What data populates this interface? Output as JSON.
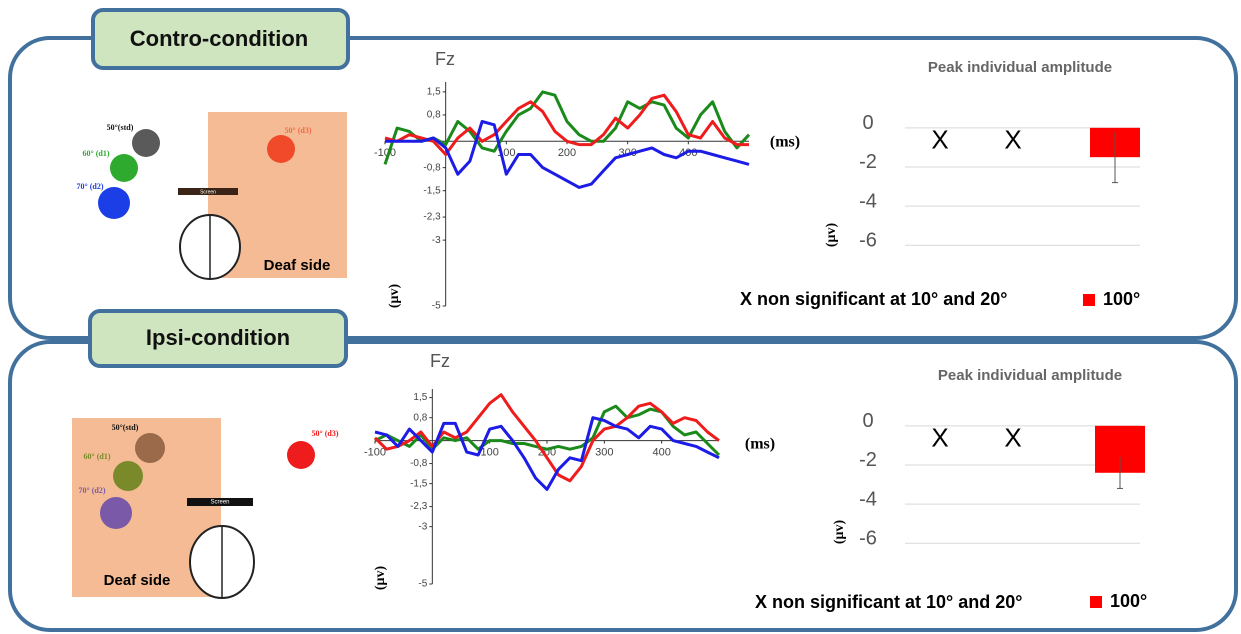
{
  "panels": [
    {
      "label": "Contro-condition",
      "diagram": {
        "std": "50°(std)",
        "d1": "60° (d1)",
        "d2": "70° (d2)",
        "d3": "50° (d3)",
        "screen": "Screen",
        "side": "Deaf side"
      }
    },
    {
      "label": "Ipsi-condition",
      "diagram": {
        "std": "50°(std)",
        "d1": "60° (d1)",
        "d2": "70° (d2)",
        "d3": "50° (d3)",
        "screen": "Screen",
        "side": "Deaf side"
      }
    }
  ],
  "chart_data": [
    {
      "type": "line",
      "title": "Fz",
      "x_label": "(ms)",
      "y_label": "(μv)",
      "x": [
        -100,
        -80,
        -60,
        -40,
        -20,
        0,
        20,
        40,
        60,
        80,
        100,
        120,
        140,
        160,
        180,
        200,
        220,
        240,
        260,
        280,
        300,
        320,
        340,
        360,
        380,
        400,
        420,
        440,
        460,
        480,
        500
      ],
      "xlim": [
        -100,
        500
      ],
      "xticks": [
        -100,
        100,
        200,
        300,
        400
      ],
      "ylim": [
        -5,
        1.8
      ],
      "yticks": [
        {
          "value": 1.5,
          "label": "1,5"
        },
        {
          "value": 0.8,
          "label": "0,8"
        },
        {
          "value": -0.8,
          "label": "-0,8"
        },
        {
          "value": -1.5,
          "label": "-1,5"
        },
        {
          "value": -2.3,
          "label": "-2,3"
        },
        {
          "value": -3,
          "label": "-3"
        },
        {
          "value": -5,
          "label": "-5"
        }
      ],
      "grid": false,
      "series": [
        {
          "color": "#1a8a1a",
          "values": [
            -0.7,
            0.4,
            0.3,
            0,
            0.1,
            -0.1,
            0.6,
            0.3,
            -0.2,
            -0.3,
            0.3,
            0.8,
            1.0,
            1.5,
            1.4,
            0.6,
            0.2,
            0,
            0,
            0.4,
            1.2,
            1.0,
            1.2,
            1.1,
            0.4,
            0.1,
            0.8,
            1.2,
            0.3,
            -0.2,
            0.2
          ]
        },
        {
          "color": "#ee1c1c",
          "values": [
            0.1,
            0,
            0.2,
            0.1,
            0,
            -0.4,
            0.1,
            0.4,
            0,
            0.2,
            0.6,
            1.0,
            1.2,
            0.9,
            0.3,
            0,
            -0.1,
            -0.1,
            0.2,
            0.7,
            0.4,
            0.8,
            1.3,
            1.4,
            0.9,
            0.2,
            0.1,
            0.6,
            0.1,
            -0.1,
            -0.1
          ]
        },
        {
          "color": "#1c1ce6",
          "values": [
            0,
            0,
            0,
            0,
            0.1,
            -0.2,
            -1.0,
            -0.6,
            0.6,
            0.5,
            -1.0,
            -0.4,
            -0.4,
            -0.8,
            -1.0,
            -1.2,
            -1.4,
            -1.3,
            -0.9,
            -0.5,
            -0.4,
            -0.3,
            -0.2,
            -0.4,
            -0.5,
            -0.3,
            -0.3,
            -0.4,
            -0.5,
            -0.6,
            -0.7
          ]
        }
      ]
    },
    {
      "type": "bar",
      "title": "Peak individual amplitude",
      "y_label": "(μv)",
      "categories": [
        null,
        null,
        null
      ],
      "category_markers": [
        "X",
        "X",
        null
      ],
      "ylim": [
        -6.5,
        0.4
      ],
      "yticks": [
        0,
        -2,
        -4,
        -6
      ],
      "grid": true,
      "annotation": "X non significant at 10° and 20°",
      "series": [
        {
          "name": "100°",
          "color": "#ff0000",
          "values": [
            null,
            null,
            -1.5
          ],
          "errors": [
            null,
            null,
            1.3
          ]
        }
      ]
    },
    {
      "type": "line",
      "title": "Fz",
      "x_label": "(ms)",
      "y_label": "(μv)",
      "x": [
        -100,
        -80,
        -60,
        -40,
        -20,
        0,
        20,
        40,
        60,
        80,
        100,
        120,
        140,
        160,
        180,
        200,
        220,
        240,
        260,
        280,
        300,
        320,
        340,
        360,
        380,
        400,
        420,
        440,
        460,
        480,
        500
      ],
      "xlim": [
        -100,
        500
      ],
      "xticks": [
        -100,
        100,
        200,
        300,
        400
      ],
      "ylim": [
        -5,
        1.8
      ],
      "yticks": [
        {
          "value": 1.5,
          "label": "1,5"
        },
        {
          "value": 0.8,
          "label": "0,8"
        },
        {
          "value": -0.8,
          "label": "-0,8"
        },
        {
          "value": -1.5,
          "label": "-1,5"
        },
        {
          "value": -2.3,
          "label": "-2,3"
        },
        {
          "value": -3,
          "label": "-3"
        },
        {
          "value": -5,
          "label": "-5"
        }
      ],
      "grid": false,
      "series": [
        {
          "color": "#1a8a1a",
          "values": [
            0,
            0.2,
            0,
            -0.2,
            0.2,
            -0.3,
            0.1,
            0,
            0.1,
            -0.3,
            0,
            0,
            -0.1,
            -0.1,
            -0.2,
            -0.3,
            -0.2,
            -0.3,
            -0.2,
            0.1,
            1.0,
            1.2,
            0.8,
            0.9,
            1.1,
            1.0,
            0.5,
            0.2,
            0.3,
            -0.1,
            -0.5
          ]
        },
        {
          "color": "#ee1c1c",
          "values": [
            0.1,
            -0.3,
            -0.2,
            0,
            0.3,
            -0.2,
            0.3,
            0.1,
            0.3,
            0.8,
            1.3,
            1.6,
            1.0,
            0.5,
            0,
            -0.6,
            -1.2,
            -1.4,
            -0.9,
            0,
            0.4,
            0.5,
            0.8,
            1.2,
            1.3,
            1.0,
            0.6,
            0.8,
            0.7,
            0.3,
            0
          ]
        },
        {
          "color": "#1c1ce6",
          "values": [
            0.3,
            0.2,
            -0.2,
            0.4,
            0,
            -0.4,
            0.6,
            0.6,
            -0.4,
            -0.5,
            0.4,
            0.5,
            0,
            -0.6,
            -1.3,
            -1.7,
            -1.0,
            -0.6,
            -0.7,
            0.8,
            0.7,
            0.5,
            0.4,
            0.1,
            0.5,
            0.4,
            0,
            -0.1,
            -0.2,
            -0.4,
            -0.6
          ]
        }
      ]
    },
    {
      "type": "bar",
      "title": "Peak individual amplitude",
      "y_label": "(μv)",
      "categories": [
        null,
        null,
        null
      ],
      "category_markers": [
        "X",
        "X",
        null
      ],
      "ylim": [
        -6.5,
        0.4
      ],
      "yticks": [
        0,
        -2,
        -4,
        -6
      ],
      "grid": true,
      "annotation": "X non significant at 10° and 20°",
      "series": [
        {
          "name": "100°",
          "color": "#ff0000",
          "values": [
            null,
            null,
            -2.4
          ],
          "errors": [
            null,
            null,
            0.8
          ]
        }
      ]
    }
  ]
}
